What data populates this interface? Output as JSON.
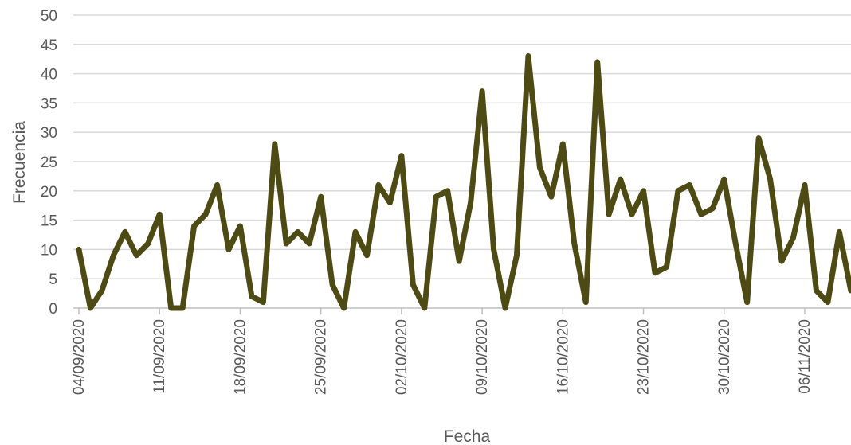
{
  "chart_data": {
    "type": "line",
    "title": "",
    "xlabel": "Fecha",
    "ylabel": "Frecuencia",
    "ylim": [
      0,
      50
    ],
    "yticks": [
      "0",
      "5",
      "10",
      "15",
      "20",
      "25",
      "30",
      "35",
      "40",
      "45",
      "50"
    ],
    "xticks": [
      "04/09/2020",
      "11/09/2020",
      "18/09/2020",
      "25/09/2020",
      "02/10/2020",
      "09/10/2020",
      "16/10/2020",
      "23/10/2020",
      "30/10/2020",
      "06/11/2020"
    ],
    "x_start": "04/09/2020",
    "x_end": "11/11/2020",
    "grid": true,
    "legend": "none",
    "series": [
      {
        "color": "#4d4a14",
        "values": [
          10,
          0,
          3,
          9,
          13,
          9,
          11,
          16,
          0,
          0,
          14,
          16,
          21,
          10,
          14,
          2,
          1,
          28,
          11,
          13,
          11,
          19,
          4,
          0,
          13,
          9,
          21,
          18,
          26,
          4,
          0,
          19,
          20,
          8,
          18,
          37,
          10,
          0,
          9,
          43,
          24,
          19,
          28,
          11,
          1,
          42,
          16,
          22,
          16,
          20,
          6,
          7,
          20,
          21,
          16,
          17,
          22,
          11,
          1,
          29,
          22,
          8,
          12,
          21,
          3,
          1,
          13,
          3
        ]
      }
    ]
  }
}
